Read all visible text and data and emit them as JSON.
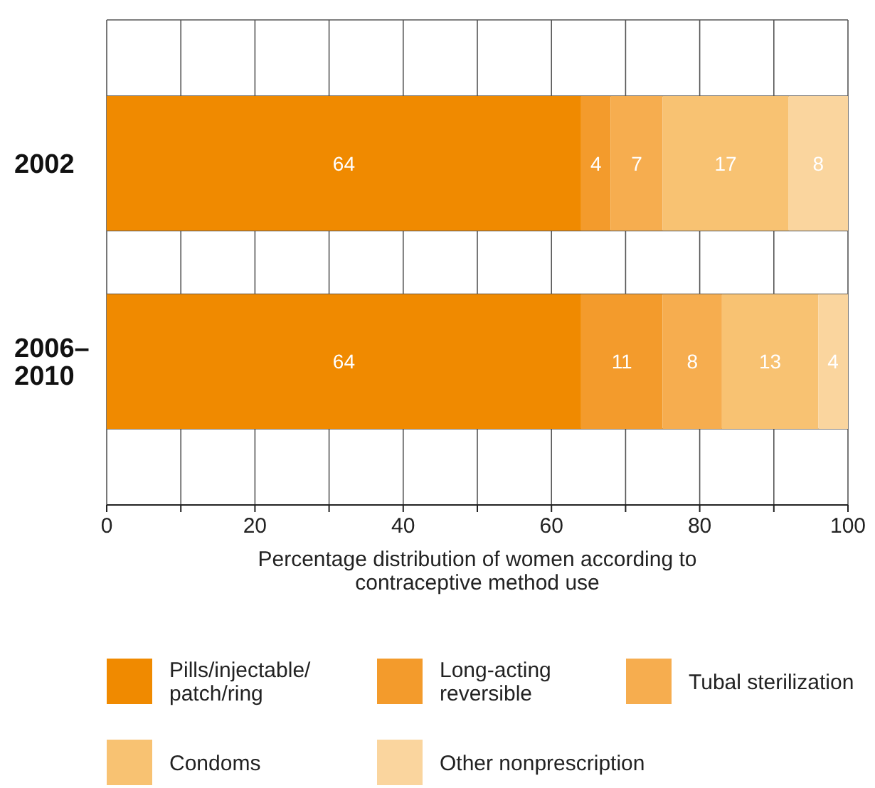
{
  "chart_data": {
    "type": "bar",
    "orientation": "horizontal",
    "stacked": true,
    "categories": [
      "2002",
      "2006–2010"
    ],
    "series": [
      {
        "name": "Pills/injectable/patch/ring",
        "color": "#f08a00",
        "values": [
          64,
          64
        ]
      },
      {
        "name": "Long-acting reversible",
        "color": "#f39b2c",
        "values": [
          4,
          11
        ]
      },
      {
        "name": "Tubal sterilization",
        "color": "#f6ad4f",
        "values": [
          7,
          8
        ]
      },
      {
        "name": "Condoms",
        "color": "#f8c272",
        "values": [
          17,
          13
        ]
      },
      {
        "name": "Other nonprescription",
        "color": "#fad59e",
        "values": [
          8,
          4
        ]
      }
    ],
    "xlabel": "Percentage distribution of women according to contraceptive method use",
    "xlim": [
      0,
      100
    ],
    "xticks": [
      0,
      {
        "value": 10,
        "label": null
      },
      20,
      {
        "value": 30,
        "label": null
      },
      40,
      {
        "value": 50,
        "label": null
      },
      60,
      {
        "value": 70,
        "label": null
      },
      80,
      {
        "value": 90,
        "label": null
      },
      100
    ],
    "grid": "x",
    "legend": "bottom",
    "data_labels": true
  }
}
